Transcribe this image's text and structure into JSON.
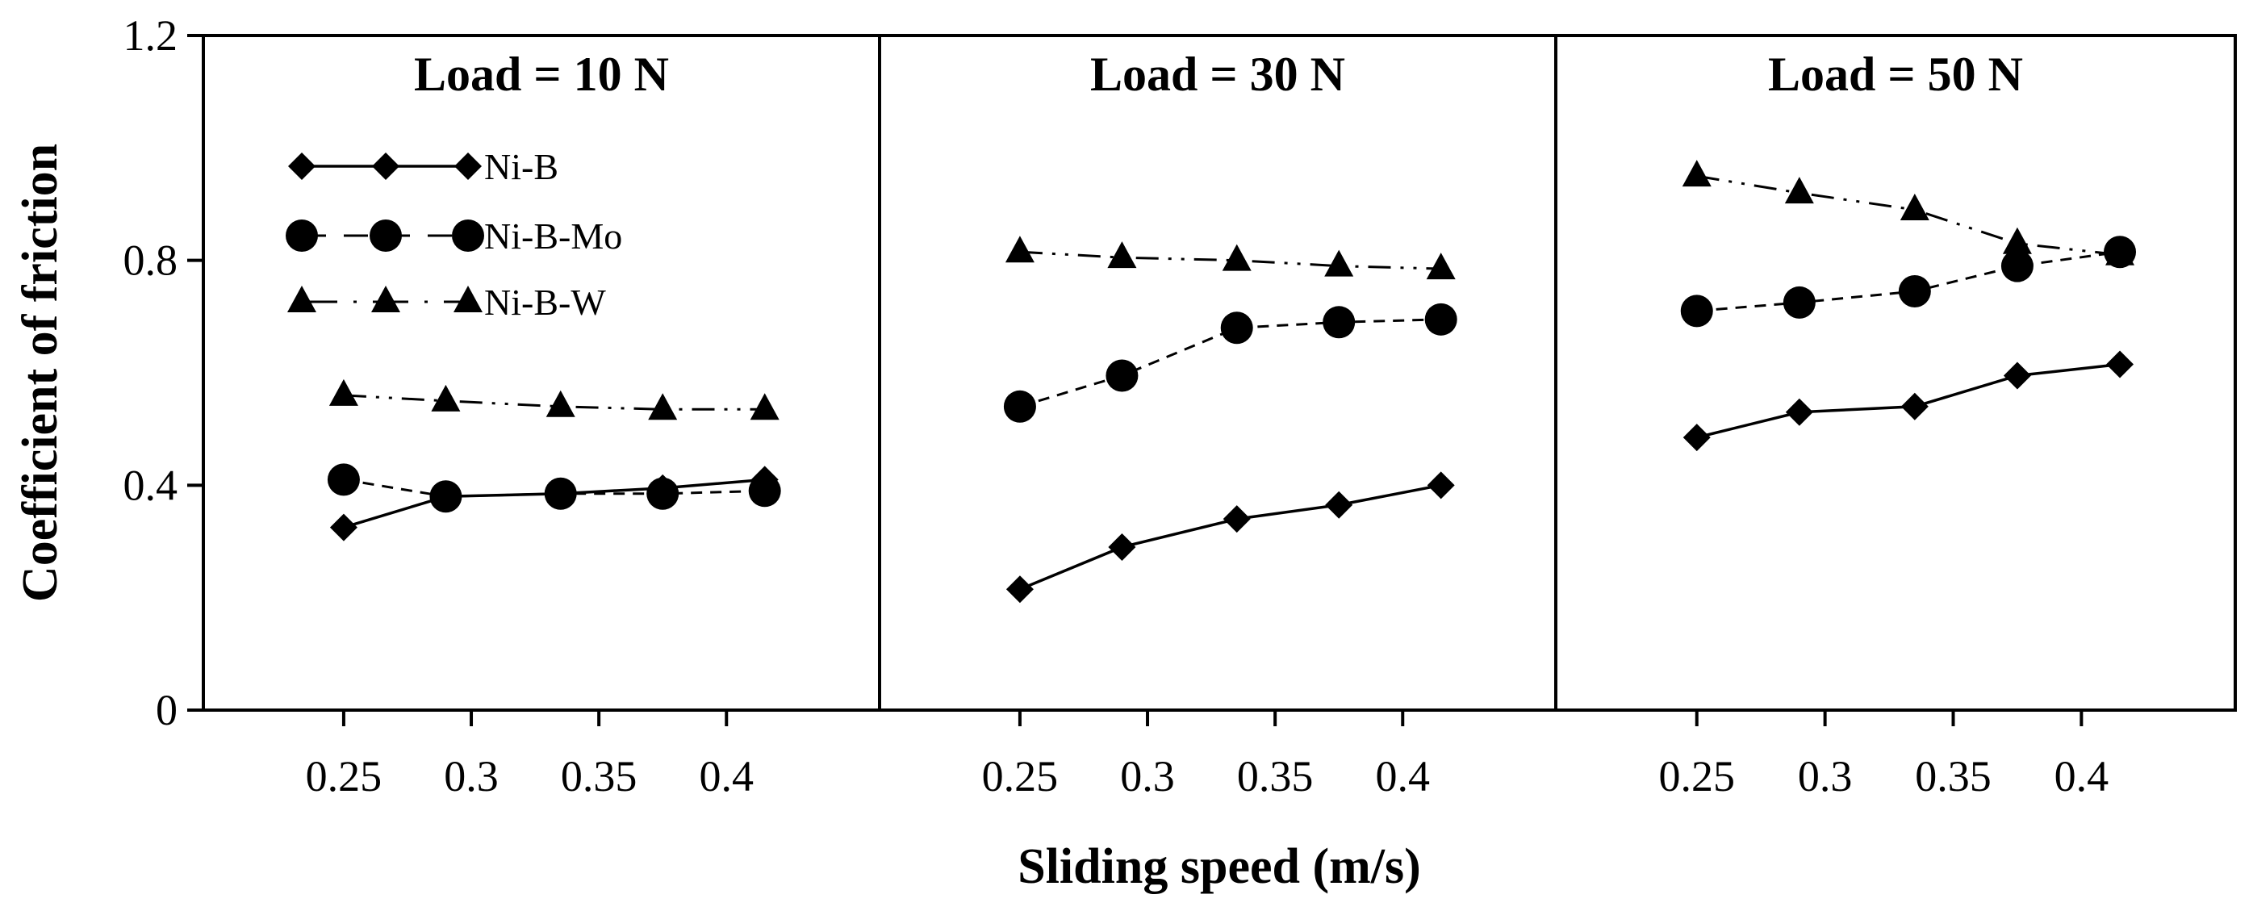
{
  "chart_data": {
    "type": "line",
    "ylabel": "Coefficient of friction",
    "xlabel": "Sliding speed (m/s)",
    "ylim": [
      0,
      1.2
    ],
    "yticks": [
      "0",
      "0.4",
      "0.8",
      "1.2"
    ],
    "y_tick_values": [
      0,
      0.4,
      0.8,
      1.2
    ],
    "xlim": [
      0.195,
      0.46
    ],
    "xticks": [
      "0.25",
      "0.3",
      "0.35",
      "0.4"
    ],
    "x_tick_values": [
      0.25,
      0.3,
      0.35,
      0.4
    ],
    "x": [
      0.25,
      0.29,
      0.335,
      0.375,
      0.415
    ],
    "legend": {
      "position": "upper-left",
      "entries": [
        {
          "label": "Ni-B",
          "marker": "diamond",
          "line": "solid"
        },
        {
          "label": "Ni-B-Mo",
          "marker": "circle",
          "line": "dashed"
        },
        {
          "label": "Ni-B-W",
          "marker": "triangle",
          "line": "dash-dot"
        }
      ]
    },
    "panels": [
      {
        "title": "Load = 10 N",
        "series": [
          {
            "name": "Ni-B",
            "values": [
              0.325,
              0.38,
              0.385,
              0.395,
              0.41
            ]
          },
          {
            "name": "Ni-B-Mo",
            "values": [
              0.41,
              0.38,
              0.385,
              0.385,
              0.39
            ]
          },
          {
            "name": "Ni-B-W",
            "values": [
              0.56,
              0.55,
              0.54,
              0.535,
              0.535
            ]
          }
        ]
      },
      {
        "title": "Load = 30 N",
        "series": [
          {
            "name": "Ni-B",
            "values": [
              0.215,
              0.29,
              0.34,
              0.365,
              0.4
            ]
          },
          {
            "name": "Ni-B-Mo",
            "values": [
              0.54,
              0.595,
              0.68,
              0.69,
              0.695
            ]
          },
          {
            "name": "Ni-B-W",
            "values": [
              0.815,
              0.805,
              0.8,
              0.79,
              0.785
            ]
          }
        ]
      },
      {
        "title": "Load = 50 N",
        "series": [
          {
            "name": "Ni-B",
            "values": [
              0.485,
              0.53,
              0.54,
              0.595,
              0.615
            ]
          },
          {
            "name": "Ni-B-Mo",
            "values": [
              0.71,
              0.725,
              0.745,
              0.79,
              0.815
            ]
          },
          {
            "name": "Ni-B-W",
            "values": [
              0.95,
              0.92,
              0.89,
              0.83,
              0.81
            ]
          }
        ]
      }
    ]
  }
}
